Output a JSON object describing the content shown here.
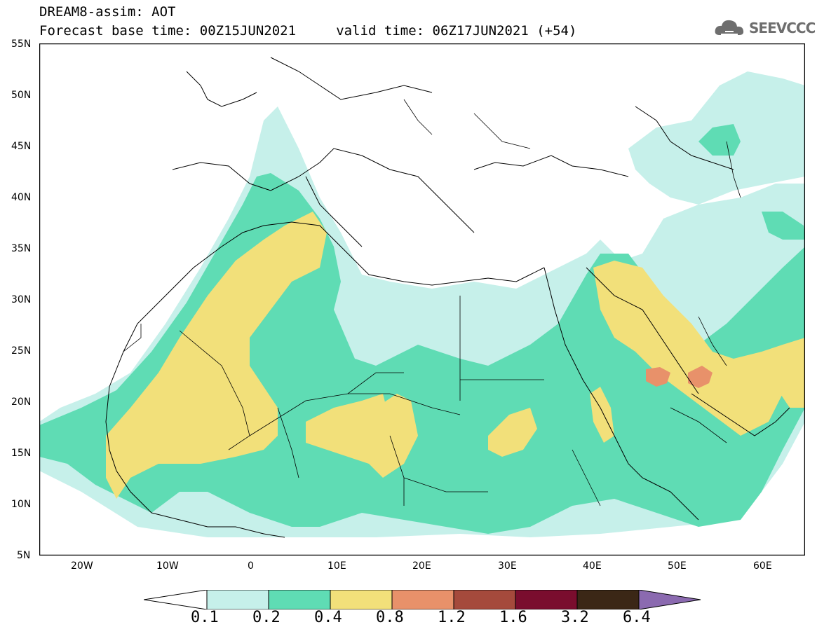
{
  "title": {
    "line1": "DREAM8-assim: AOT",
    "line2": "Forecast base time: 00Z15JUN2021     valid time: 06Z17JUN2021 (+54)"
  },
  "logo": {
    "text": "SEEVCCC",
    "icon": "cloud-icon"
  },
  "map": {
    "lat_labels": [
      "55N",
      "50N",
      "45N",
      "40N",
      "35N",
      "30N",
      "25N",
      "20N",
      "15N",
      "10N",
      "5N"
    ],
    "lon_labels": [
      "20W",
      "10W",
      "0",
      "10E",
      "20E",
      "30E",
      "40E",
      "50E",
      "60E"
    ],
    "lon_range": [
      -25,
      65
    ],
    "lat_range": [
      5,
      55
    ]
  },
  "colorbar": {
    "labels": [
      "0.1",
      "0.2",
      "0.4",
      "0.8",
      "1.2",
      "1.6",
      "3.2",
      "6.4"
    ],
    "colors": [
      "#ffffff",
      "#c6f0ea",
      "#5fdcb4",
      "#f2e07a",
      "#e8916a",
      "#a54a3c",
      "#7a0d2e",
      "#3b2716",
      "#8b6ab0"
    ]
  }
}
